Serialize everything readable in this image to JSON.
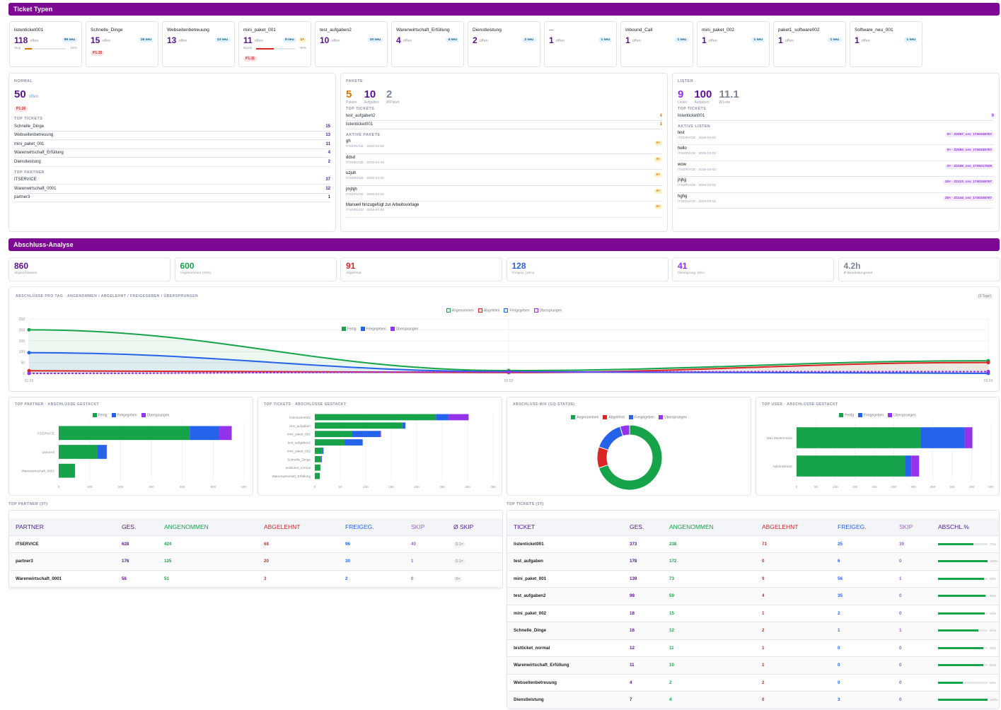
{
  "colors": {
    "purple": "#5b1091",
    "green": "#16a34a",
    "red": "#dc2626",
    "blue": "#2563eb",
    "violet": "#9333ea",
    "gray": "#7c8596",
    "orange": "#d97706",
    "header": "#7d0893"
  },
  "ticket_types": {
    "title": "Ticket Typen",
    "cards": [
      {
        "name": "listenticket001",
        "count": "118",
        "offen": "offen",
        "neu": "99 neu",
        "prog_label": "Skip",
        "prog_value": 16,
        "prog_text": "16%",
        "prog_color": "#d97706"
      },
      {
        "name": "Schnelle_Dinge",
        "count": "15",
        "offen": "offen",
        "neu": "15 neu",
        "p1": "P1:15"
      },
      {
        "name": "Webseitenbetreuung",
        "count": "13",
        "offen": "offen",
        "neu": "13 neu"
      },
      {
        "name": "mini_paket_001",
        "count": "11",
        "offen": "offen",
        "neu": "9 neu",
        "extra": "1×",
        "prog_label": "Boost",
        "prog_value": 45,
        "prog_text": "45%",
        "prog_color": "#dc2626",
        "p1": "P1:11"
      },
      {
        "name": "test_aufgaben2",
        "count": "10",
        "offen": "offen",
        "neu": "10 neu"
      },
      {
        "name": "Warenwirtschaft_Erfüllung",
        "count": "4",
        "offen": "offen",
        "neu": "4 neu"
      },
      {
        "name": "Dienstleistung",
        "count": "2",
        "offen": "offen",
        "neu": "2 neu"
      },
      {
        "name": "—",
        "count": "1",
        "offen": "offen",
        "neu": "1 neu"
      },
      {
        "name": "Inbound_Call",
        "count": "1",
        "offen": "offen",
        "neu": "1 neu"
      },
      {
        "name": "mini_paket_002",
        "count": "1",
        "offen": "offen",
        "neu": "1 neu"
      },
      {
        "name": "paket1_software002",
        "count": "1",
        "offen": "offen",
        "neu": "1 neu"
      },
      {
        "name": "Software_neu_001",
        "count": "1",
        "offen": "offen",
        "neu": "1 neu"
      }
    ]
  },
  "normal": {
    "label": "NORMAL",
    "count": "50",
    "offen": "offen",
    "p1": "P1:26",
    "top_tickets_label": "TOP TICKETS",
    "top_tickets": [
      {
        "name": "Schnelle_Dinge",
        "value": "15"
      },
      {
        "name": "Webseitenbetreuung",
        "value": "13"
      },
      {
        "name": "mini_paket_001",
        "value": "11"
      },
      {
        "name": "Warenwirtschaft_Erfüllung",
        "value": "4"
      },
      {
        "name": "Dienstleistung",
        "value": "2"
      }
    ],
    "top_partner_label": "TOP PARTNER",
    "top_partner": [
      {
        "name": "ITSERVICE",
        "value": "37"
      },
      {
        "name": "Warenwirtschaft_0001",
        "value": "12"
      },
      {
        "name": "partner3",
        "value": "1"
      }
    ]
  },
  "pakete": {
    "label": "PAKETE",
    "stats": [
      {
        "value": "5",
        "label": "Pakete",
        "color": "#d97706"
      },
      {
        "value": "10",
        "label": "Aufgaben",
        "color": "#5b1091"
      },
      {
        "value": "2",
        "label": "Ø/Paket",
        "color": "#7c8596"
      }
    ],
    "top_tickets_label": "TOP TICKETS",
    "top_tickets": [
      {
        "name": "test_aufgaben2",
        "value": "4"
      },
      {
        "name": "listenticket001",
        "value": "1"
      }
    ],
    "active_label": "AKTIVE PAKETE",
    "active": [
      {
        "name": "gh",
        "meta": "ITSERVICE · 2026-03-02",
        "badge": "0×"
      },
      {
        "name": "ddsd",
        "meta": "ITSERVICE · 2026-03-02",
        "badge": "0×"
      },
      {
        "name": "uzjuh",
        "meta": "ITSERVICE · 2026-03-02",
        "badge": "5×"
      },
      {
        "name": "jmjhjh",
        "meta": "ITSERVICE · 2026-03-02",
        "badge": "5×"
      },
      {
        "name": "Manuell hinzugefügt zur Arbeitsvorlage",
        "meta": "ITSERVICE · 2026-03-02",
        "badge": "0×"
      }
    ]
  },
  "listen": {
    "label": "LISTEN",
    "stats": [
      {
        "value": "9",
        "label": "Listen",
        "color": "#9333ea"
      },
      {
        "value": "100",
        "label": "Aufgaben",
        "color": "#5b1091"
      },
      {
        "value": "11.1",
        "label": "Ø/Liste",
        "color": "#7c8596"
      }
    ],
    "top_tickets_label": "TOP TICKETS",
    "top_tickets": [
      {
        "name": "listenticket001",
        "value": "9"
      }
    ],
    "active_label": "AKTIVE LISTEN",
    "active": [
      {
        "name": "test",
        "meta": "ITSERVICE · 2026-03-02",
        "badge": "0× · Z2057_csv_1740345767"
      },
      {
        "name": "hello",
        "meta": "ITSERVICE · 2026-03-02",
        "badge": "0× · Z2084_csv_1740345767"
      },
      {
        "name": "wow",
        "meta": "ITSERVICE · 2026-03-02",
        "badge": "2× · Z2105_csv_1735217528"
      },
      {
        "name": "jhjhjj",
        "meta": "ITSERVICE · 2026-03-02",
        "badge": "20× · Z2123_csv_1740345767"
      },
      {
        "name": "hghg",
        "meta": "ITSERVICE · 2026-03-02",
        "badge": "20× · Z2144_csv_1740345767"
      }
    ]
  },
  "abschluss": {
    "title": "Abschluss-Analyse",
    "kpis": [
      {
        "value": "860",
        "label": "Abgeschlossen",
        "color": "#5b1091"
      },
      {
        "value": "600",
        "label": "Angenommen (70%)",
        "color": "#16a34a"
      },
      {
        "value": "91",
        "label": "Abgelehnt",
        "color": "#dc2626"
      },
      {
        "value": "128",
        "label": "Freigeg. (15%)",
        "color": "#2563eb"
      },
      {
        "value": "41",
        "label": "Übersprung. (5%)",
        "color": "#9333ea"
      },
      {
        "value": "4.2h",
        "label": "Ø Bearbeitungszeit",
        "color": "#7c8596"
      }
    ]
  },
  "chart_data": [
    {
      "type": "line",
      "title": "ABSCHLÜSSE PRO TAG · ANGENOMMEN / ABGELEHNT / FREIGEGEBEN / ÜBERSPRUNGEN",
      "badge": "(3 Tage)",
      "categories": [
        "01.03",
        "02.03",
        "03.03"
      ],
      "ylim": [
        0,
        250
      ],
      "yticks": [
        0,
        50,
        100,
        150,
        200,
        250
      ],
      "legend": "top-center",
      "grid": true,
      "series": [
        {
          "name": "Angenommen",
          "color": "#16a34a",
          "values": [
            200,
            13,
            58
          ]
        },
        {
          "name": "Abgelehnt",
          "color": "#dc2626",
          "values": [
            12,
            4,
            50
          ]
        },
        {
          "name": "Freigegeben",
          "color": "#2563eb",
          "values": [
            95,
            8,
            0
          ]
        },
        {
          "name": "Übersprungen",
          "color": "#9333ea",
          "values": [
            0,
            7,
            8
          ],
          "dashed": true
        }
      ]
    },
    {
      "type": "bar",
      "orientation": "horizontal",
      "stacked": true,
      "title": "TOP PARTNER · ABSCHLÜSSE GESTACKT",
      "categories": [
        "ITSERVICE",
        "partner3",
        "Warenwirtschaft_0001"
      ],
      "xlim": [
        0,
        600
      ],
      "xticks": [
        0,
        100,
        200,
        300,
        400,
        500,
        600
      ],
      "legend": "top-center",
      "series": [
        {
          "name": "Fertig",
          "color": "#16a34a",
          "values": [
            424,
            125,
            51
          ]
        },
        {
          "name": "Freigegeben",
          "color": "#2563eb",
          "values": [
            96,
            30,
            2
          ]
        },
        {
          "name": "Übersprungen",
          "color": "#9333ea",
          "values": [
            40,
            1,
            0
          ]
        }
      ]
    },
    {
      "type": "bar",
      "orientation": "horizontal",
      "stacked": true,
      "title": "TOP TICKETS · ABSCHLÜSSE GESTACKT",
      "categories": [
        "listenticket001",
        "test_aufgaben",
        "mini_paket_001",
        "test_aufgaben2",
        "mini_paket_002",
        "Schnelle_Dinge",
        "testticket_normal",
        "Warenwirtschaft_Erfüllung"
      ],
      "xlim": [
        0,
        350
      ],
      "xticks": [
        0,
        50,
        100,
        150,
        200,
        250,
        300,
        350
      ],
      "series": [
        {
          "name": "Fertig",
          "color": "#16a34a",
          "values": [
            238,
            172,
            73,
            59,
            15,
            12,
            11,
            10
          ]
        },
        {
          "name": "Freigegeben",
          "color": "#2563eb",
          "values": [
            25,
            6,
            56,
            35,
            2,
            1,
            0,
            0
          ]
        },
        {
          "name": "Übersprungen",
          "color": "#9333ea",
          "values": [
            39,
            0,
            1,
            0,
            0,
            1,
            0,
            0
          ]
        }
      ]
    },
    {
      "type": "pie",
      "donut": true,
      "title": "ABSCHLUSS-MIX (GQ-STATUS)",
      "legend": "top-center",
      "categories": [
        "Angenommen",
        "Abgelehnt",
        "Freigegeben",
        "Übersprungen"
      ],
      "values": [
        600,
        91,
        128,
        41
      ],
      "colors": [
        "#16a34a",
        "#dc2626",
        "#2563eb",
        "#9333ea"
      ]
    },
    {
      "type": "bar",
      "orientation": "horizontal",
      "stacked": true,
      "title": "TOP USER · ABSCHLÜSSE GESTACKT",
      "categories": [
        "Max Mustermann",
        "Administrator"
      ],
      "xlim": [
        0,
        500
      ],
      "xticks": [
        0,
        50,
        100,
        150,
        200,
        250,
        300,
        350,
        400,
        450,
        500
      ],
      "legend": "top-center",
      "series": [
        {
          "name": "Fertig",
          "color": "#16a34a",
          "values": [
            320,
            280
          ]
        },
        {
          "name": "Freigegeben",
          "color": "#2563eb",
          "values": [
            112,
            15
          ]
        },
        {
          "name": "Übersprungen",
          "color": "#9333ea",
          "values": [
            20,
            20
          ]
        }
      ]
    }
  ],
  "partner_table": {
    "label": "TOP PARTNER (3T)",
    "headers": [
      "PARTNER",
      "GES.",
      "ANGENOMMEN",
      "ABGELEHNT",
      "FREIGEG.",
      "SKIP",
      "Ø SKIP"
    ],
    "rows": [
      [
        "ITSERVICE",
        "628",
        "424",
        "68",
        "96",
        "40",
        "0.1×"
      ],
      [
        "partner3",
        "176",
        "125",
        "20",
        "30",
        "1",
        "0.1×"
      ],
      [
        "Warenwirtschaft_0001",
        "56",
        "51",
        "3",
        "2",
        "0",
        "0×"
      ]
    ]
  },
  "ticket_table": {
    "label": "TOP TICKETS (3T)",
    "headers": [
      "TICKET",
      "GES.",
      "ANGENOMMEN",
      "ABGELEHNT",
      "FREIGEG.",
      "SKIP",
      "ABSCHL.%"
    ],
    "rows": [
      [
        "listenticket001",
        "373",
        "238",
        "71",
        "25",
        "39",
        "71%"
      ],
      [
        "test_aufgaben",
        "178",
        "172",
        "0",
        "6",
        "0",
        "100%"
      ],
      [
        "mini_paket_001",
        "139",
        "73",
        "9",
        "56",
        "1",
        "93%"
      ],
      [
        "test_aufgaben2",
        "98",
        "59",
        "4",
        "35",
        "0",
        "96%"
      ],
      [
        "mini_paket_002",
        "18",
        "15",
        "1",
        "2",
        "0",
        "94%"
      ],
      [
        "Schnelle_Dinge",
        "16",
        "12",
        "2",
        "1",
        "1",
        "81%"
      ],
      [
        "testticket_normal",
        "12",
        "11",
        "1",
        "0",
        "0",
        "92%"
      ],
      [
        "Warenwirtschaft_Erfüllung",
        "11",
        "10",
        "1",
        "0",
        "0",
        "91%"
      ],
      [
        "Webseitenbetreuung",
        "4",
        "2",
        "2",
        "0",
        "0",
        "50%"
      ],
      [
        "Dienstleistung",
        "7",
        "4",
        "0",
        "3",
        "0",
        "100%"
      ]
    ],
    "pct_values": [
      71,
      100,
      93,
      96,
      94,
      81,
      92,
      91,
      50,
      100
    ]
  }
}
